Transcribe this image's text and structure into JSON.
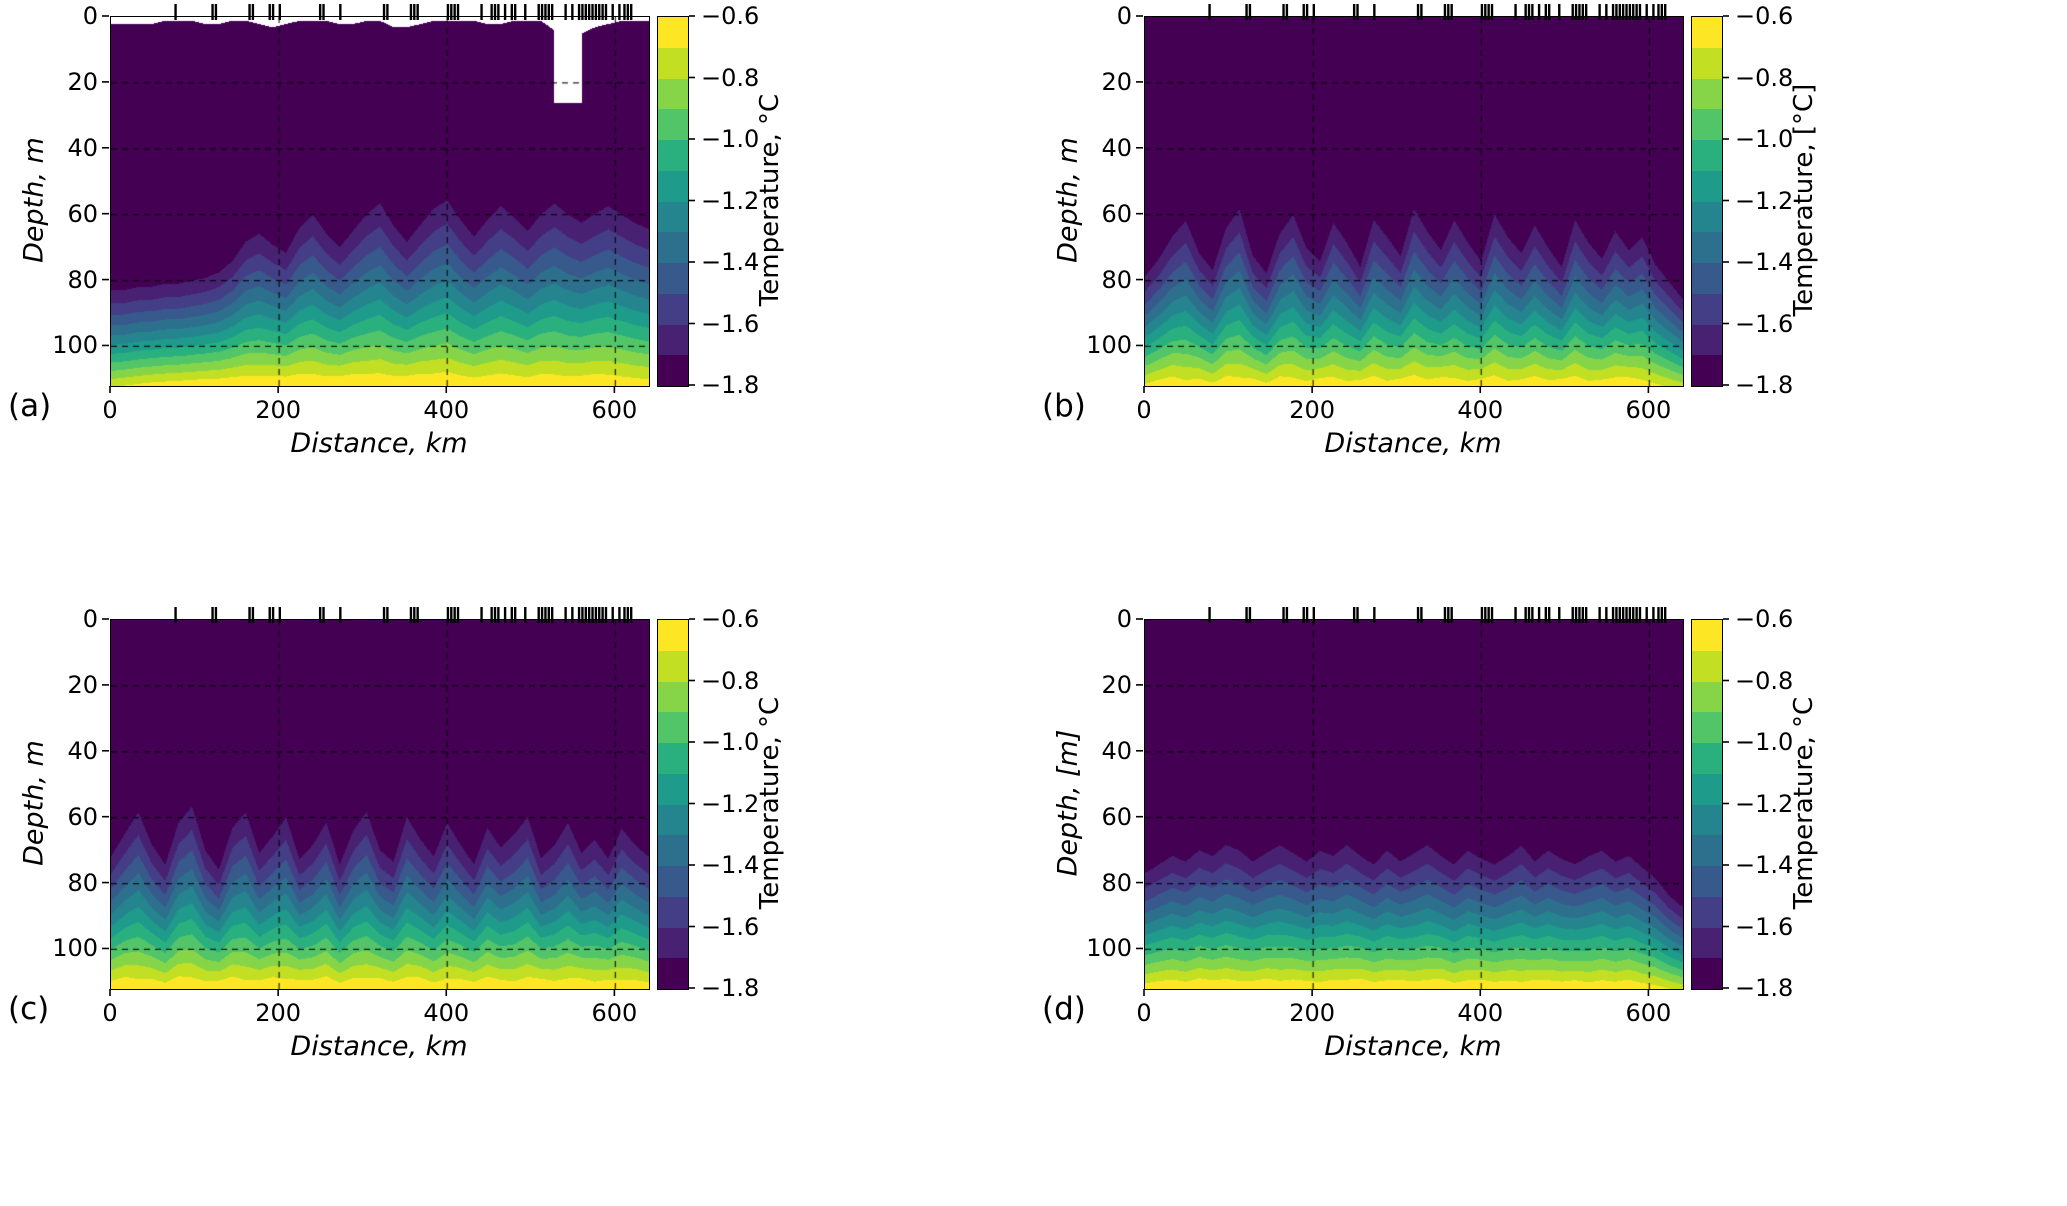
{
  "figure": {
    "background": "#ffffff",
    "description": "Four-panel vertical ocean temperature sections (depth vs distance) with viridis filled contours and station tick marks along the top axis"
  },
  "colormap": {
    "name": "viridis",
    "levels": [
      -1.8,
      -1.7,
      -1.6,
      -1.5,
      -1.4,
      -1.3,
      -1.2,
      -1.1,
      -1.0,
      -0.9,
      -0.8,
      -0.7,
      -0.6
    ],
    "band_colors": [
      "#440154",
      "#482173",
      "#433e85",
      "#38598c",
      "#2d708e",
      "#25858e",
      "#1e9b8a",
      "#2ab07f",
      "#52c569",
      "#86d549",
      "#c2df23",
      "#fde725"
    ]
  },
  "colorbar": {
    "tick_values": [
      -0.6,
      -0.8,
      -1.0,
      -1.2,
      -1.4,
      -1.6,
      -1.8
    ],
    "tick_labels": [
      "−0.6",
      "−0.8",
      "−1.0",
      "−1.2",
      "−1.4",
      "−1.6",
      "−1.8"
    ]
  },
  "stations_km": [
    78,
    122,
    126,
    166,
    170,
    190,
    194,
    202,
    250,
    254,
    274,
    326,
    330,
    358,
    362,
    366,
    402,
    406,
    410,
    414,
    442,
    454,
    458,
    462,
    470,
    478,
    482,
    494,
    510,
    514,
    518,
    522,
    526,
    542,
    550,
    558,
    562,
    566,
    570,
    574,
    578,
    582,
    586,
    590,
    598,
    606,
    612,
    616,
    620
  ],
  "chart_data": [
    {
      "type": "filled-contour-section",
      "panel_label": "(a)",
      "xlabel": "Distance, km",
      "ylabel": "Depth, m",
      "colorbar_label": "Temperature, °C",
      "x_range_km": [
        0,
        640
      ],
      "x_ticks": [
        0,
        200,
        400,
        600
      ],
      "depth_range_m": [
        0,
        112
      ],
      "depth_ticks": [
        0,
        20,
        40,
        60,
        80,
        100
      ],
      "x_sample_step_km": 16,
      "thermocline_depth_m": [
        77,
        77,
        76,
        76,
        75,
        75,
        74,
        73,
        71,
        67,
        60,
        57,
        61,
        64,
        55,
        50,
        57,
        62,
        56,
        50,
        46,
        54,
        60,
        54,
        48,
        45,
        52,
        58,
        52,
        47,
        51,
        56,
        50,
        46,
        50,
        53,
        50,
        47,
        50,
        53,
        55
      ],
      "bottom_temp_c": [
        -0.72,
        -0.7,
        -0.68,
        -0.66,
        -0.65,
        -0.64,
        -0.63,
        -0.62,
        -0.62,
        -0.61,
        -0.61,
        -0.62,
        -0.61,
        -0.61,
        -0.6,
        -0.61,
        -0.62,
        -0.61,
        -0.6,
        -0.61,
        -0.61,
        -0.62,
        -0.61,
        -0.6,
        -0.61,
        -0.6,
        -0.62,
        -0.63,
        -0.62,
        -0.61,
        -0.62,
        -0.63,
        -0.61,
        -0.62,
        -0.63,
        -0.62,
        -0.61,
        -0.62,
        -0.63,
        -0.64,
        -0.65
      ],
      "surface_gap_m": [
        2,
        2,
        2,
        2,
        1,
        1,
        1,
        2,
        2,
        1,
        1,
        2,
        3,
        2,
        1,
        1,
        1,
        2,
        2,
        1,
        1,
        3,
        3,
        2,
        1,
        1,
        1,
        1,
        2,
        2,
        1,
        1,
        1,
        4,
        6,
        5,
        3,
        2,
        1,
        1,
        1
      ],
      "missing_regions": [
        {
          "x0": 528,
          "x1": 560,
          "z0": 0,
          "z1": 26
        }
      ]
    },
    {
      "type": "filled-contour-section",
      "panel_label": "(b)",
      "xlabel": "Distance, km",
      "ylabel": "Depth, m",
      "colorbar_label": "Temperature, [°C]",
      "x_range_km": [
        0,
        640
      ],
      "x_ticks": [
        0,
        200,
        400,
        600
      ],
      "depth_range_m": [
        0,
        112
      ],
      "depth_ticks": [
        0,
        20,
        40,
        60,
        80,
        100
      ],
      "x_sample_step_km": 16,
      "thermocline_depth_m": [
        72,
        66,
        58,
        52,
        64,
        70,
        55,
        48,
        65,
        71,
        57,
        50,
        62,
        67,
        53,
        60,
        69,
        52,
        58,
        65,
        48,
        56,
        63,
        52,
        60,
        67,
        50,
        58,
        64,
        54,
        62,
        69,
        52,
        60,
        66,
        56,
        63,
        58,
        68,
        74,
        80
      ],
      "bottom_temp_c": [
        -0.68,
        -0.64,
        -0.62,
        -0.66,
        -0.63,
        -0.67,
        -0.62,
        -0.64,
        -0.63,
        -0.67,
        -0.62,
        -0.64,
        -0.66,
        -0.62,
        -0.63,
        -0.66,
        -0.64,
        -0.62,
        -0.66,
        -0.63,
        -0.62,
        -0.65,
        -0.62,
        -0.64,
        -0.66,
        -0.63,
        -0.62,
        -0.66,
        -0.64,
        -0.62,
        -0.65,
        -0.63,
        -0.62,
        -0.66,
        -0.64,
        -0.63,
        -0.62,
        -0.65,
        -0.68,
        -0.72,
        -0.76
      ]
    },
    {
      "type": "filled-contour-section",
      "panel_label": "(c)",
      "xlabel": "Distance, km",
      "ylabel": "Depth, m",
      "colorbar_label": "Temperature, °C",
      "x_range_km": [
        0,
        640
      ],
      "x_ticks": [
        0,
        200,
        400,
        600
      ],
      "depth_range_m": [
        0,
        112
      ],
      "depth_ticks": [
        0,
        20,
        40,
        60,
        80,
        100
      ],
      "x_sample_step_km": 16,
      "thermocline_depth_m": [
        64,
        56,
        48,
        60,
        67,
        52,
        46,
        62,
        69,
        54,
        48,
        63,
        57,
        50,
        65,
        60,
        52,
        67,
        55,
        48,
        62,
        66,
        50,
        58,
        64,
        52,
        60,
        67,
        54,
        61,
        56,
        50,
        65,
        60,
        52,
        63,
        58,
        65,
        54,
        60,
        64
      ],
      "bottom_temp_c": [
        -0.62,
        -0.6,
        -0.63,
        -0.61,
        -0.64,
        -0.6,
        -0.62,
        -0.63,
        -0.61,
        -0.6,
        -0.64,
        -0.62,
        -0.6,
        -0.63,
        -0.61,
        -0.62,
        -0.6,
        -0.64,
        -0.61,
        -0.62,
        -0.6,
        -0.63,
        -0.61,
        -0.6,
        -0.64,
        -0.62,
        -0.61,
        -0.63,
        -0.6,
        -0.62,
        -0.64,
        -0.61,
        -0.6,
        -0.63,
        -0.62,
        -0.6,
        -0.64,
        -0.61,
        -0.63,
        -0.62,
        -0.64
      ]
    },
    {
      "type": "filled-contour-section",
      "panel_label": "(d)",
      "xlabel": "Distance, km",
      "ylabel": "Depth, [m]",
      "colorbar_label": "Temperature, °C",
      "x_range_km": [
        0,
        640
      ],
      "x_ticks": [
        0,
        200,
        400,
        600
      ],
      "depth_range_m": [
        0,
        112
      ],
      "depth_ticks": [
        0,
        20,
        40,
        60,
        80,
        100
      ],
      "x_sample_step_km": 16,
      "thermocline_depth_m": [
        70,
        67,
        64,
        66,
        62,
        64,
        60,
        62,
        66,
        63,
        60,
        63,
        66,
        62,
        64,
        60,
        64,
        67,
        62,
        66,
        63,
        60,
        64,
        67,
        62,
        65,
        67,
        64,
        60,
        66,
        62,
        65,
        67,
        64,
        62,
        66,
        64,
        68,
        72,
        78,
        82
      ],
      "bottom_temp_c": [
        -0.64,
        -0.62,
        -0.61,
        -0.63,
        -0.6,
        -0.62,
        -0.61,
        -0.63,
        -0.62,
        -0.6,
        -0.63,
        -0.61,
        -0.62,
        -0.64,
        -0.61,
        -0.62,
        -0.6,
        -0.63,
        -0.62,
        -0.61,
        -0.63,
        -0.62,
        -0.6,
        -0.64,
        -0.62,
        -0.61,
        -0.63,
        -0.62,
        -0.64,
        -0.61,
        -0.62,
        -0.63,
        -0.61,
        -0.64,
        -0.62,
        -0.63,
        -0.61,
        -0.64,
        -0.66,
        -0.7,
        -0.74
      ]
    }
  ]
}
